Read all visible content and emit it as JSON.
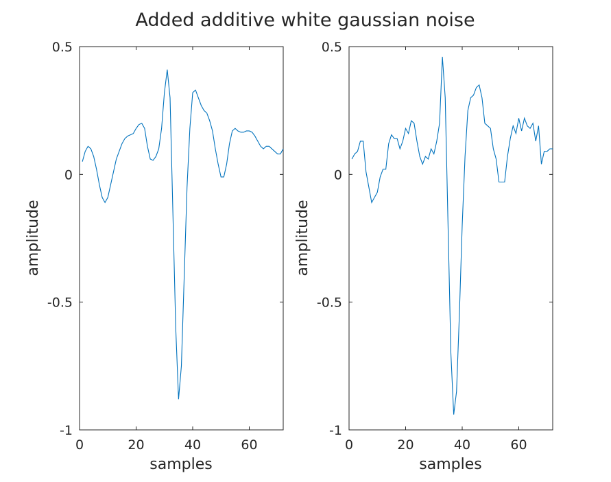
{
  "figure_title": "Added additive white gaussian noise",
  "chart_data": [
    {
      "type": "line",
      "title": "",
      "xlabel": "samples",
      "ylabel": "amplitude",
      "xlim": [
        0,
        72
      ],
      "ylim": [
        -1,
        0.5
      ],
      "xticks": [
        "0",
        "20",
        "40",
        "60"
      ],
      "yticks": [
        "0.5",
        "0",
        "-0.5",
        "-1"
      ],
      "grid": false,
      "line_color": "#0072BD",
      "series": [
        {
          "x": [
            1,
            2,
            3,
            4,
            5,
            6,
            7,
            8,
            9,
            10,
            11,
            12,
            13,
            14,
            15,
            16,
            17,
            18,
            19,
            20,
            21,
            22,
            23,
            24,
            25,
            26,
            27,
            28,
            29,
            30,
            31,
            32,
            33,
            34,
            35,
            36,
            37,
            38,
            39,
            40,
            41,
            42,
            43,
            44,
            45,
            46,
            47,
            48,
            49,
            50,
            51,
            52,
            53,
            54,
            55,
            56,
            57,
            58,
            59,
            60,
            61,
            62,
            63,
            64,
            65,
            66,
            67,
            68,
            69,
            70,
            71,
            72
          ],
          "y": [
            0.05,
            0.09,
            0.11,
            0.1,
            0.07,
            0.02,
            -0.04,
            -0.09,
            -0.11,
            -0.09,
            -0.04,
            0.01,
            0.06,
            0.09,
            0.12,
            0.14,
            0.15,
            0.155,
            0.16,
            0.18,
            0.195,
            0.2,
            0.18,
            0.11,
            0.06,
            0.055,
            0.07,
            0.1,
            0.18,
            0.32,
            0.41,
            0.3,
            -0.15,
            -0.6,
            -0.88,
            -0.75,
            -0.4,
            -0.05,
            0.18,
            0.32,
            0.33,
            0.3,
            0.27,
            0.25,
            0.24,
            0.21,
            0.17,
            0.1,
            0.04,
            -0.01,
            -0.01,
            0.04,
            0.12,
            0.17,
            0.18,
            0.17,
            0.165,
            0.165,
            0.17,
            0.17,
            0.165,
            0.15,
            0.13,
            0.11,
            0.1,
            0.11,
            0.11,
            0.1,
            0.09,
            0.08,
            0.08,
            0.1
          ]
        }
      ]
    },
    {
      "type": "line",
      "title": "",
      "xlabel": "samples",
      "ylabel": "amplitude",
      "xlim": [
        0,
        72
      ],
      "ylim": [
        -1,
        0.5
      ],
      "xticks": [
        "0",
        "20",
        "40",
        "60"
      ],
      "yticks": [
        "0.5",
        "0",
        "-0.5",
        "-1"
      ],
      "grid": false,
      "line_color": "#0072BD",
      "series": [
        {
          "x": [
            1,
            2,
            3,
            4,
            5,
            6,
            7,
            8,
            9,
            10,
            11,
            12,
            13,
            14,
            15,
            16,
            17,
            18,
            19,
            20,
            21,
            22,
            23,
            24,
            25,
            26,
            27,
            28,
            29,
            30,
            31,
            32,
            33,
            34,
            35,
            36,
            37,
            38,
            39,
            40,
            41,
            42,
            43,
            44,
            45,
            46,
            47,
            48,
            49,
            50,
            51,
            52,
            53,
            54,
            55,
            56,
            57,
            58,
            59,
            60,
            61,
            62,
            63,
            64,
            65,
            66,
            67,
            68,
            69,
            70,
            71,
            72
          ],
          "y": [
            0.06,
            0.08,
            0.09,
            0.13,
            0.13,
            0.01,
            -0.05,
            -0.11,
            -0.09,
            -0.07,
            -0.01,
            0.02,
            0.02,
            0.12,
            0.155,
            0.14,
            0.14,
            0.1,
            0.13,
            0.18,
            0.16,
            0.21,
            0.2,
            0.13,
            0.07,
            0.04,
            0.07,
            0.06,
            0.1,
            0.08,
            0.13,
            0.2,
            0.46,
            0.3,
            -0.2,
            -0.7,
            -0.94,
            -0.85,
            -0.55,
            -0.2,
            0.07,
            0.25,
            0.3,
            0.31,
            0.34,
            0.35,
            0.3,
            0.2,
            0.19,
            0.18,
            0.1,
            0.06,
            -0.03,
            -0.03,
            -0.03,
            0.07,
            0.14,
            0.19,
            0.16,
            0.22,
            0.17,
            0.22,
            0.19,
            0.18,
            0.2,
            0.13,
            0.19,
            0.04,
            0.09,
            0.09,
            0.1,
            0.1
          ]
        }
      ]
    }
  ]
}
